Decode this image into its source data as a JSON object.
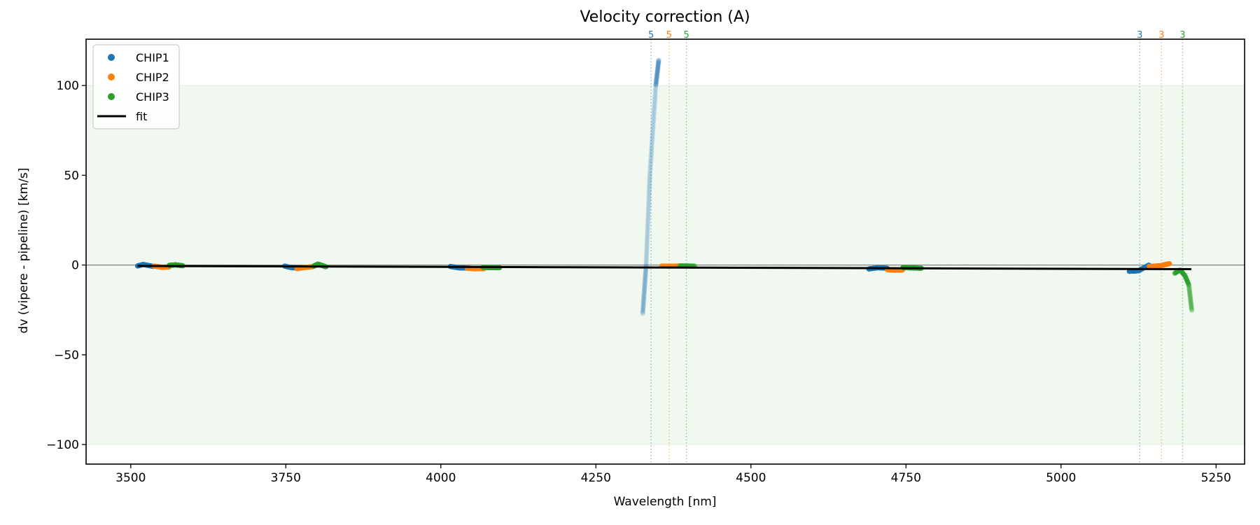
{
  "chart_data": {
    "type": "scatter",
    "title": "Velocity correction (A)",
    "xlabel": "Wavelength [nm]",
    "ylabel": "dv (vipere - pipeline) [km/s]",
    "xlim": [
      3428,
      5296
    ],
    "ylim": [
      -110.9,
      125.8
    ],
    "xticks": [
      3500,
      3750,
      4000,
      4250,
      4500,
      4750,
      5000,
      5250
    ],
    "yticks": [
      -100,
      -50,
      0,
      50,
      100
    ],
    "xtick_labels": [
      "3500",
      "3750",
      "4000",
      "4250",
      "4500",
      "4750",
      "5000",
      "5250"
    ],
    "ytick_labels": [
      "−100",
      "−50",
      "0",
      "50",
      "100"
    ],
    "grid": false,
    "shaded_band": {
      "ymin": -100,
      "ymax": 100,
      "color": "#2ca02c"
    },
    "zero_line": 0,
    "legend": {
      "placement": "top-left",
      "entries": [
        {
          "label": "CHIP1",
          "marker": "dot",
          "color": "#1f77b4"
        },
        {
          "label": "CHIP2",
          "marker": "dot",
          "color": "#ff7f0e"
        },
        {
          "label": "CHIP3",
          "marker": "dot",
          "color": "#2ca02c"
        },
        {
          "label": "fit",
          "marker": "line",
          "color": "#000000"
        }
      ]
    },
    "series": [
      {
        "name": "CHIP1",
        "color": "#1f77b4",
        "segments": [
          {
            "points": [
              [
                3511,
                -0.5
              ],
              [
                3520,
                0.3
              ],
              [
                3537,
                -0.8
              ]
            ]
          },
          {
            "points": [
              [
                3748,
                -0.6
              ],
              [
                3760,
                -1.5
              ],
              [
                3775,
                -1.6
              ]
            ]
          },
          {
            "points": [
              [
                4015,
                -0.8
              ],
              [
                4030,
                -1.6
              ],
              [
                4045,
                -1.6
              ]
            ]
          },
          {
            "points": [
              [
                4325.5,
                -27
              ],
              [
                4331,
                0
              ],
              [
                4337,
                50
              ],
              [
                4346.6,
                100
              ],
              [
                4351.5,
                114.6
              ]
            ],
            "faded": true
          },
          {
            "points": [
              [
                4690,
                -2.2
              ],
              [
                4705,
                -1.5
              ],
              [
                4720,
                -1.8
              ]
            ]
          },
          {
            "points": [
              [
                5110,
                -3.5
              ],
              [
                5125,
                -3.2
              ],
              [
                5142,
                0
              ]
            ]
          }
        ]
      },
      {
        "name": "CHIP2",
        "color": "#ff7f0e",
        "segments": [
          {
            "points": [
              [
                3537,
                -0.6
              ],
              [
                3550,
                -1.2
              ],
              [
                3562,
                -1.1
              ]
            ]
          },
          {
            "points": [
              [
                3768,
                -2.0
              ],
              [
                3780,
                -1.4
              ],
              [
                3795,
                -0.8
              ]
            ]
          },
          {
            "points": [
              [
                4042,
                -1.7
              ],
              [
                4055,
                -2.1
              ],
              [
                4070,
                -2.0
              ]
            ]
          },
          {
            "points": [
              [
                4355,
                -0.5
              ],
              [
                4370,
                -0.6
              ],
              [
                4385,
                -0.5
              ]
            ],
            "faded": true
          },
          {
            "points": [
              [
                4720,
                -2.6
              ],
              [
                4732,
                -2.9
              ],
              [
                4745,
                -2.7
              ]
            ]
          },
          {
            "points": [
              [
                5142,
                -0.8
              ],
              [
                5160,
                -0.4
              ],
              [
                5175,
                0.8
              ]
            ]
          }
        ]
      },
      {
        "name": "CHIP3",
        "color": "#2ca02c",
        "segments": [
          {
            "points": [
              [
                3562,
                -0.2
              ],
              [
                3572,
                0.1
              ],
              [
                3584,
                -0.4
              ]
            ]
          },
          {
            "points": [
              [
                3795,
                -0.6
              ],
              [
                3802,
                0.5
              ],
              [
                3815,
                -1.0
              ]
            ]
          },
          {
            "points": [
              [
                4068,
                -1.3
              ],
              [
                4080,
                -1.4
              ],
              [
                4095,
                -1.5
              ]
            ]
          },
          {
            "points": [
              [
                4385,
                -0.4
              ],
              [
                4397,
                -0.5
              ],
              [
                4410,
                -0.6
              ]
            ],
            "faded": true
          },
          {
            "points": [
              [
                4745,
                -1.4
              ],
              [
                4760,
                -1.6
              ],
              [
                4775,
                -1.8
              ]
            ]
          },
          {
            "points": [
              [
                5183,
                -4.7
              ],
              [
                5192,
                -2.7
              ],
              [
                5200,
                -6
              ],
              [
                5206,
                -11
              ],
              [
                5211,
                -25.7
              ]
            ],
            "faded": true
          }
        ]
      }
    ],
    "fit": {
      "label": "fit",
      "color": "#000000",
      "x": [
        3511,
        5210
      ],
      "y": [
        -0.5,
        -2.3
      ]
    },
    "vlines": [
      {
        "x": 4339,
        "label": "5",
        "color": "#1f77b4"
      },
      {
        "x": 4368,
        "label": "5",
        "color": "#ff7f0e"
      },
      {
        "x": 4396,
        "label": "5",
        "color": "#2ca02c"
      },
      {
        "x": 5127,
        "label": "3",
        "color": "#1f77b4"
      },
      {
        "x": 5162,
        "label": "3",
        "color": "#ff7f0e"
      },
      {
        "x": 5196,
        "label": "3",
        "color": "#2ca02c"
      }
    ]
  }
}
